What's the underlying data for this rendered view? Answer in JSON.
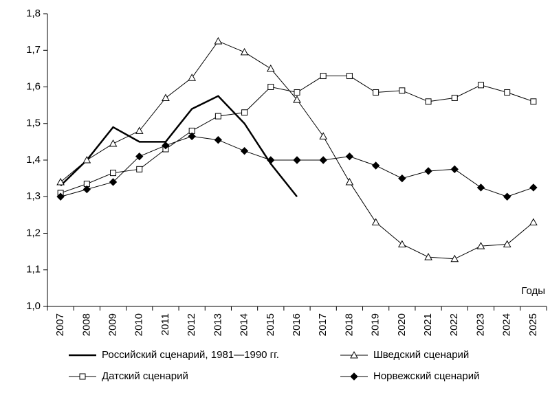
{
  "chart_data": {
    "type": "line",
    "categories": [
      "2007",
      "2008",
      "2009",
      "2010",
      "2011",
      "2012",
      "2013",
      "2014",
      "2015",
      "2016",
      "2017",
      "2018",
      "2019",
      "2020",
      "2021",
      "2022",
      "2023",
      "2024",
      "2025"
    ],
    "series": [
      {
        "name": "Российский сценарий, 1981—1990 гг.",
        "color": "#000000",
        "marker": "none",
        "values": [
          1.33,
          1.4,
          1.49,
          1.45,
          1.45,
          1.54,
          1.575,
          1.5,
          1.39,
          1.3,
          null,
          null,
          null,
          null,
          null,
          null,
          null,
          null,
          null
        ]
      },
      {
        "name": "Шведский сценарий",
        "color": "#000000",
        "marker": "triangle",
        "values": [
          1.34,
          1.4,
          1.445,
          1.48,
          1.57,
          1.625,
          1.725,
          1.695,
          1.65,
          1.565,
          1.465,
          1.34,
          1.23,
          1.17,
          1.135,
          1.13,
          1.165,
          1.17,
          1.23
        ]
      },
      {
        "name": "Датский сценарий",
        "color": "#000000",
        "marker": "square",
        "values": [
          1.31,
          1.335,
          1.365,
          1.375,
          1.43,
          1.48,
          1.52,
          1.53,
          1.6,
          1.585,
          1.63,
          1.63,
          1.585,
          1.59,
          1.56,
          1.57,
          1.605,
          1.585,
          1.56
        ]
      },
      {
        "name": "Норвежский сценарий",
        "color": "#000000",
        "marker": "diamond",
        "values": [
          1.3,
          1.32,
          1.34,
          1.41,
          1.44,
          1.465,
          1.455,
          1.425,
          1.4,
          1.4,
          1.4,
          1.41,
          1.385,
          1.35,
          1.37,
          1.375,
          1.325,
          1.3,
          1.325
        ]
      }
    ],
    "ylim": [
      1.0,
      1.8
    ],
    "yticks": [
      {
        "value": 1.0,
        "label": "1,0"
      },
      {
        "value": 1.1,
        "label": "1,1"
      },
      {
        "value": 1.2,
        "label": "1,2"
      },
      {
        "value": 1.3,
        "label": "1,3"
      },
      {
        "value": 1.4,
        "label": "1,4"
      },
      {
        "value": 1.5,
        "label": "1,5"
      },
      {
        "value": 1.6,
        "label": "1,6"
      },
      {
        "value": 1.7,
        "label": "1,7"
      },
      {
        "value": 1.8,
        "label": "1,8"
      }
    ],
    "annotation": "Годы"
  }
}
